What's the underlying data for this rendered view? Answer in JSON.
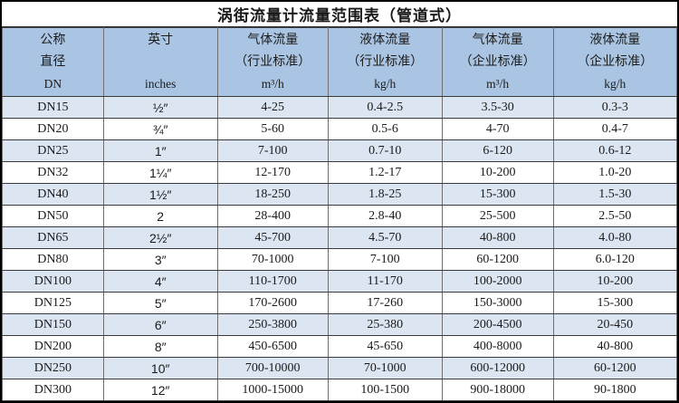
{
  "title": "涡街流量计流量范围表（管道式）",
  "table": {
    "headers": [
      {
        "name": "nominal-diameter",
        "lines": [
          "公称",
          "直径",
          "DN"
        ]
      },
      {
        "name": "inches",
        "lines": [
          "英寸",
          "",
          "inches"
        ]
      },
      {
        "name": "gas-flow-industry-standard",
        "lines": [
          "气体流量",
          "（行业标准）",
          "m³/h"
        ]
      },
      {
        "name": "liquid-flow-industry-standard",
        "lines": [
          "液体流量",
          "（行业标准）",
          "kg/h"
        ]
      },
      {
        "name": "gas-flow-enterprise-standard",
        "lines": [
          "气体流量",
          "（企业标准）",
          "m³/h"
        ]
      },
      {
        "name": "liquid-flow-enterprise-standard",
        "lines": [
          "液体流量",
          "（企业标准）",
          "kg/h"
        ]
      }
    ],
    "rows": [
      [
        "DN15",
        "½″",
        "4-25",
        "0.4-2.5",
        "3.5-30",
        "0.3-3"
      ],
      [
        "DN20",
        "¾″",
        "5-60",
        "0.5-6",
        "4-70",
        "0.4-7"
      ],
      [
        "DN25",
        "1″",
        "7-100",
        "0.7-10",
        "6-120",
        "0.6-12"
      ],
      [
        "DN32",
        "1¼″",
        "12-170",
        "1.2-17",
        "10-200",
        "1.0-20"
      ],
      [
        "DN40",
        "1½″",
        "18-250",
        "1.8-25",
        "15-300",
        "1.5-30"
      ],
      [
        "DN50",
        "2",
        "28-400",
        "2.8-40",
        "25-500",
        "2.5-50"
      ],
      [
        "DN65",
        "2½″",
        "45-700",
        "4.5-70",
        "40-800",
        "4.0-80"
      ],
      [
        "DN80",
        "3″",
        "70-1000",
        "7-100",
        "60-1200",
        "6.0-120"
      ],
      [
        "DN100",
        "4″",
        "110-1700",
        "11-170",
        "100-2000",
        "10-200"
      ],
      [
        "DN125",
        "5″",
        "170-2600",
        "17-260",
        "150-3000",
        "15-300"
      ],
      [
        "DN150",
        "6″",
        "250-3800",
        "25-380",
        "200-4500",
        "20-450"
      ],
      [
        "DN200",
        "8″",
        "450-6500",
        "45-650",
        "400-8000",
        "40-800"
      ],
      [
        "DN250",
        "10″",
        "700-10000",
        "70-1000",
        "600-12000",
        "60-1200"
      ],
      [
        "DN300",
        "12″",
        "1000-15000",
        "100-1500",
        "900-18000",
        "90-1800"
      ]
    ]
  },
  "colors": {
    "header_bg": "#aac5e3",
    "row_alt_bg": "#dce6f2",
    "row_bg": "#ffffff",
    "text": "#1a1a1a",
    "outer_border": "#000000"
  }
}
